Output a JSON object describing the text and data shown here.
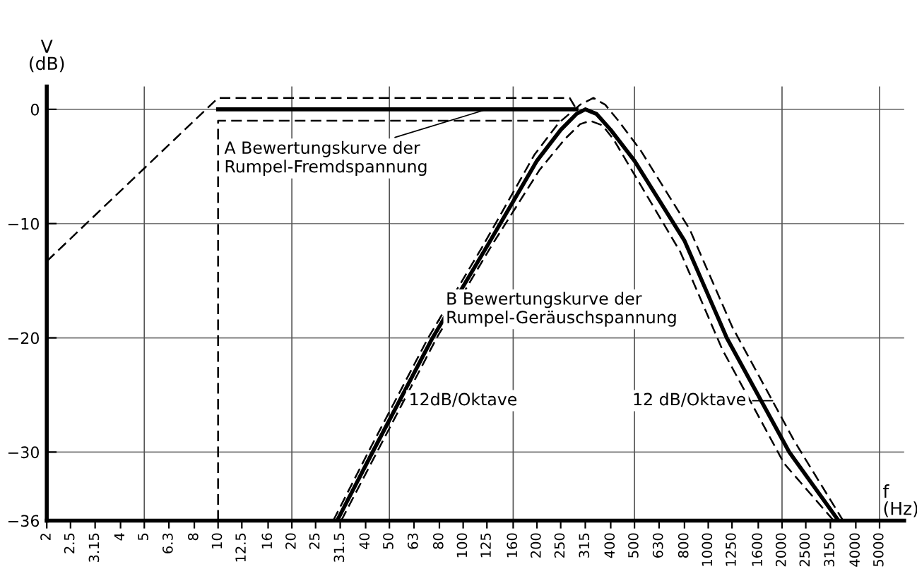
{
  "chart_data": {
    "type": "line",
    "xlabel": "f\n(Hz)",
    "ylabel": "V\n(dB)",
    "log": "x",
    "xlim": [
      2,
      6300
    ],
    "ylim": [
      -36,
      2
    ],
    "xticks": [
      2,
      2.5,
      3.15,
      4,
      5,
      6.3,
      8,
      10,
      12.5,
      16,
      20,
      25,
      31.5,
      40,
      50,
      63,
      80,
      100,
      125,
      160,
      200,
      250,
      315,
      400,
      500,
      630,
      800,
      1000,
      1250,
      1600,
      2000,
      2500,
      3150,
      4000,
      5000
    ],
    "yticks": [
      0,
      -10,
      -20,
      -30,
      -36
    ],
    "grid": "y",
    "ref_lines": [
      {
        "axis": "x",
        "value": 5,
        "label": null,
        "color": "#555555"
      },
      {
        "axis": "x",
        "value": 20,
        "label": null,
        "color": "#555555"
      },
      {
        "axis": "x",
        "value": 50,
        "label": null,
        "color": "#555555"
      },
      {
        "axis": "x",
        "value": 160,
        "label": null,
        "color": "#555555"
      },
      {
        "axis": "x",
        "value": 500,
        "label": null,
        "color": "#555555"
      },
      {
        "axis": "x",
        "value": 2000,
        "label": null,
        "color": "#555555"
      },
      {
        "axis": "x",
        "value": 5000,
        "label": null,
        "color": "#555555"
      }
    ],
    "series": [
      {
        "color": "#000000",
        "line_style": "solid",
        "x": [
          10,
          290
        ],
        "values": [
          0,
          0
        ]
      },
      {
        "color": "#000000",
        "line_style": "dashed",
        "x": [
          2,
          10,
          272,
          290
        ],
        "values": [
          -13.3,
          1,
          1,
          0
        ]
      },
      {
        "color": "#000000",
        "line_style": "dashed",
        "x": [
          10,
          10,
          250
        ],
        "values": [
          -36,
          -1,
          -1
        ]
      },
      {
        "color": "#000000",
        "line_style": "solid",
        "x": [
          30.6,
          42.7,
          75,
          125,
          200,
          250,
          290,
          315,
          350,
          400,
          500,
          800,
          1190,
          2140,
          3400
        ],
        "values": [
          -36,
          -30,
          -20,
          -12,
          -4.5,
          -1.8,
          -0.4,
          0,
          -0.4,
          -1.8,
          -4.5,
          -11.5,
          -20,
          -30,
          -36
        ]
      },
      {
        "color": "#000000",
        "line_style": "dashed",
        "x": [
          29.5,
          41,
          72,
          120,
          195,
          245,
          300,
          340,
          380,
          430,
          530,
          840,
          1250,
          2240,
          3550
        ],
        "values": [
          -36,
          -30,
          -20,
          -12,
          -4,
          -1.2,
          0.4,
          1,
          0.4,
          -1,
          -3.6,
          -10.5,
          -19,
          -29,
          -36
        ]
      },
      {
        "color": "#000000",
        "line_style": "dashed",
        "x": [
          31.8,
          44.5,
          78,
          130,
          205,
          260,
          300,
          330,
          370,
          410,
          490,
          770,
          1140,
          2040,
          3250
        ],
        "values": [
          -36,
          -30,
          -20,
          -12,
          -5.3,
          -2.6,
          -1.3,
          -1,
          -1.4,
          -2.6,
          -5.4,
          -12.5,
          -21,
          -31,
          -36
        ]
      }
    ],
    "annotations": [
      {
        "text": "A Bewertungskurve der\nRumpel-Fremdspannung",
        "x": 125,
        "y": 0
      },
      {
        "text": "B Bewertungskurve der\nRumpel-Geräuschspannung",
        "x": 80,
        "y": -18.5
      },
      {
        "text": "12dB/Oktave",
        "x": 55,
        "y": -25.5
      },
      {
        "text": "12 dB/Oktave",
        "x": 1900,
        "y": -25.5
      }
    ]
  }
}
